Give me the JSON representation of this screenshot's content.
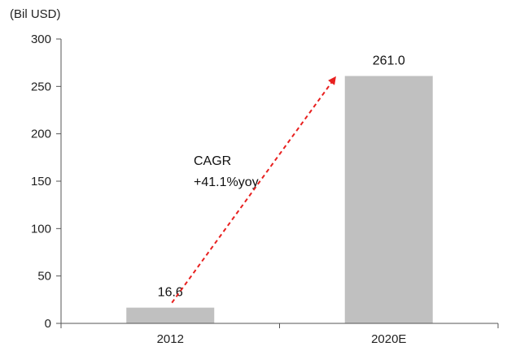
{
  "chart_data": {
    "type": "bar",
    "title": "",
    "unit_label": "(Bil USD)",
    "xlabel": "",
    "ylabel": "",
    "categories": [
      "2012",
      "2020E"
    ],
    "values": [
      16.6,
      261.0
    ],
    "data_labels": [
      "16.6",
      "261.0"
    ],
    "ylim": [
      0,
      300
    ],
    "yticks": [
      0,
      50,
      100,
      150,
      200,
      250,
      300
    ],
    "ytick_labels": [
      "0",
      "50",
      "100",
      "150",
      "200",
      "250",
      "300"
    ],
    "grid": false,
    "bar_color": "#c0c0c0",
    "annotation": {
      "lines": [
        "CAGR",
        "+41.1%yoy"
      ],
      "arrow_color": "#e8201f",
      "arrow_style": "dashed"
    }
  }
}
